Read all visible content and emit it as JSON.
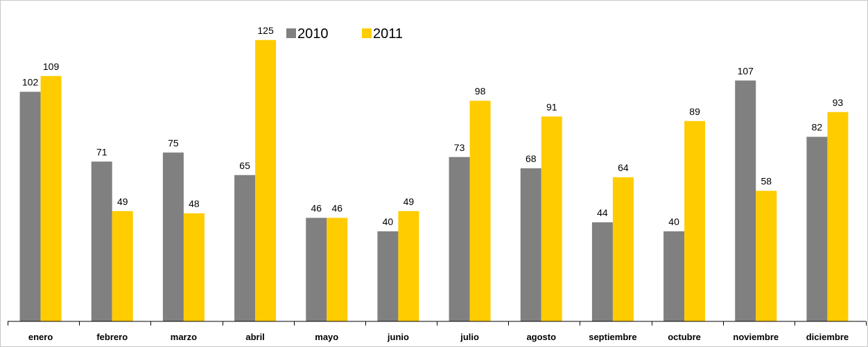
{
  "chart_data": {
    "type": "bar",
    "categories": [
      "enero",
      "febrero",
      "marzo",
      "abril",
      "mayo",
      "junio",
      "julio",
      "agosto",
      "septiembre",
      "octubre",
      "noviembre",
      "diciembre"
    ],
    "series": [
      {
        "name": "2010",
        "color": "#808080",
        "values": [
          102,
          71,
          75,
          65,
          46,
          40,
          73,
          68,
          44,
          40,
          107,
          82
        ]
      },
      {
        "name": "2011",
        "color": "#FFCC00",
        "values": [
          109,
          49,
          48,
          125,
          46,
          49,
          98,
          91,
          64,
          89,
          58,
          93
        ]
      }
    ],
    "ylim": [
      0,
      140
    ],
    "grid": false,
    "legend_position": "top-center"
  }
}
